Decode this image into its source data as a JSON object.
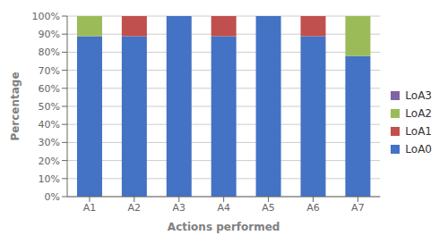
{
  "chart_data": {
    "type": "bar",
    "stacked": true,
    "xlabel": "Actions performed",
    "ylabel": "Percentage",
    "categories": [
      "A1",
      "A2",
      "A3",
      "A4",
      "A5",
      "A6",
      "A7"
    ],
    "series": [
      {
        "name": "LoA0",
        "color": "#4472C4",
        "values": [
          0.889,
          0.889,
          1.0,
          0.889,
          1.0,
          0.889,
          0.778
        ]
      },
      {
        "name": "LoA1",
        "color": "#C0504D",
        "values": [
          0.0,
          0.111,
          0.0,
          0.111,
          0.0,
          0.111,
          0.0
        ]
      },
      {
        "name": "LoA2",
        "color": "#9BBB59",
        "values": [
          0.111,
          0.0,
          0.0,
          0.0,
          0.0,
          0.0,
          0.222
        ]
      },
      {
        "name": "LoA3",
        "color": "#8064A2",
        "values": [
          0.0,
          0.0,
          0.0,
          0.0,
          0.0,
          0.0,
          0.0
        ]
      }
    ],
    "ylim": [
      0,
      1.0
    ],
    "yticks": [
      {
        "value": 0.0,
        "label": "0%"
      },
      {
        "value": 0.1,
        "label": "10%"
      },
      {
        "value": 0.2,
        "label": "20%"
      },
      {
        "value": 0.3,
        "label": "30%"
      },
      {
        "value": 0.4,
        "label": "40%"
      },
      {
        "value": 0.5,
        "label": "50%"
      },
      {
        "value": 0.6,
        "label": "60%"
      },
      {
        "value": 0.7,
        "label": "70%"
      },
      {
        "value": 0.8,
        "label": "80%"
      },
      {
        "value": 0.9,
        "label": "90%"
      },
      {
        "value": 1.0,
        "label": "100%"
      }
    ],
    "grid": true,
    "legend": "right"
  }
}
